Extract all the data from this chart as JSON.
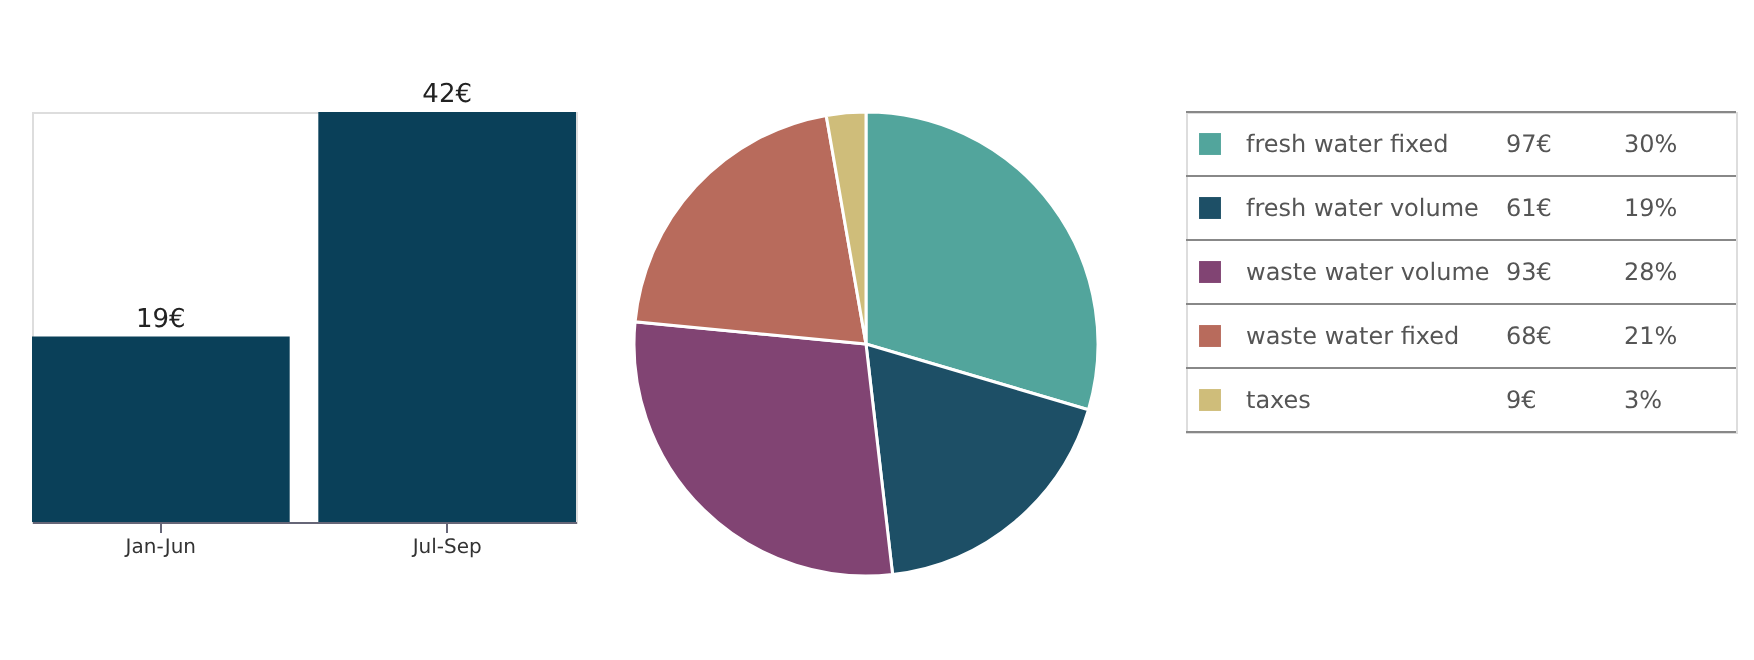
{
  "chart_data": [
    {
      "type": "bar",
      "categories": [
        "Jan-Jun",
        "Jul-Sep"
      ],
      "values": [
        19,
        42
      ],
      "color": "#0a4059",
      "value_labels": [
        "19€",
        "42€"
      ]
    },
    {
      "type": "pie",
      "categories": [
        "fresh water fixed",
        "fresh water volume",
        "waste water volume",
        "waste water fixed",
        "taxes"
      ],
      "values": [
        97,
        61,
        93,
        68,
        9
      ],
      "colors": [
        "#52a59c",
        "#1d4f66",
        "#814473",
        "#b86b5c",
        "#cfbd7a"
      ],
      "value_labels": [
        "97€",
        "61€",
        "93€",
        "68€",
        "9€"
      ],
      "annotations": [
        "30%",
        "19%",
        "28%",
        "21%",
        "3%"
      ],
      "legend": "right"
    }
  ]
}
